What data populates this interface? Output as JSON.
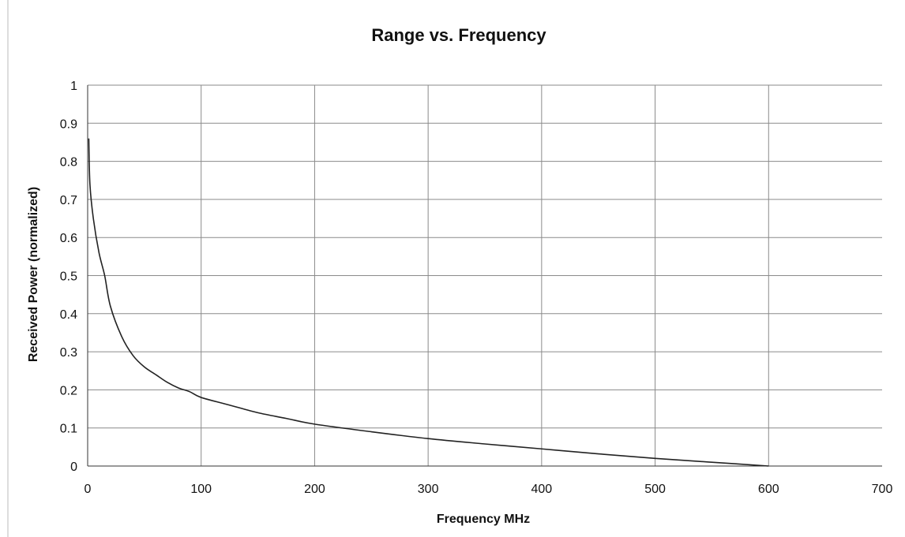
{
  "chart_data": {
    "type": "line",
    "title": "Range vs. Frequency",
    "xlabel": "Frequency MHz",
    "ylabel": "Received Power (normalized)",
    "xlim": [
      0,
      700
    ],
    "ylim": [
      0,
      1
    ],
    "x_ticks": [
      "0",
      "100",
      "200",
      "300",
      "400",
      "500",
      "600",
      "700"
    ],
    "y_ticks": [
      "0",
      "0.1",
      "0.2",
      "0.3",
      "0.4",
      "0.5",
      "0.6",
      "0.7",
      "0.8",
      "0.9",
      "1"
    ],
    "grid": true,
    "legend": "none",
    "series": [
      {
        "color": "#222222",
        "x": [
          1,
          2,
          5,
          10,
          15,
          20,
          30,
          40,
          50,
          60,
          70,
          80,
          90,
          100,
          125,
          150,
          175,
          200,
          250,
          300,
          350,
          400,
          450,
          500,
          550,
          600
        ],
        "y": [
          0.86,
          0.74,
          0.65,
          0.56,
          0.5,
          0.42,
          0.34,
          0.29,
          0.26,
          0.24,
          0.22,
          0.205,
          0.195,
          0.18,
          0.16,
          0.14,
          0.125,
          0.11,
          0.09,
          0.072,
          0.058,
          0.045,
          0.032,
          0.02,
          0.01,
          0.0
        ]
      }
    ]
  }
}
